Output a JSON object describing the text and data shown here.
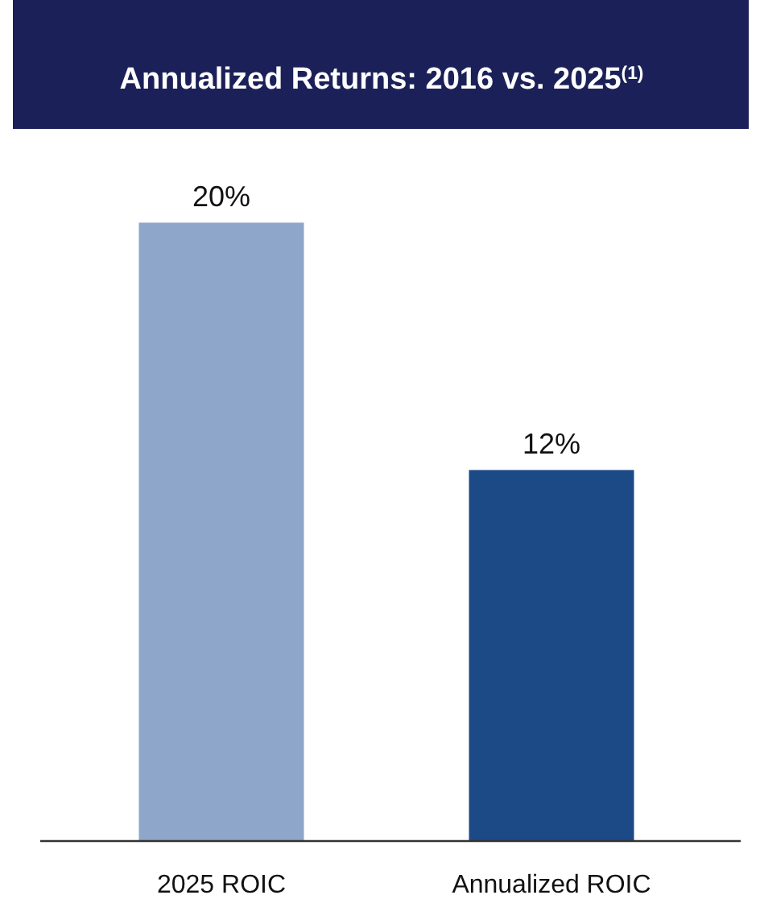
{
  "chart_data": {
    "type": "bar",
    "title": "Annualized Returns: 2016 vs. 2025$^{(1)}$",
    "categories": [
      "2025 ROIC",
      "Annualized ROIC"
    ],
    "values": [
      20,
      12
    ],
    "colors": [
      "#8ea6c9",
      "#1c4a87"
    ],
    "value_labels": [
      "20%",
      "12%"
    ],
    "tick_labels": "x"
  }
}
